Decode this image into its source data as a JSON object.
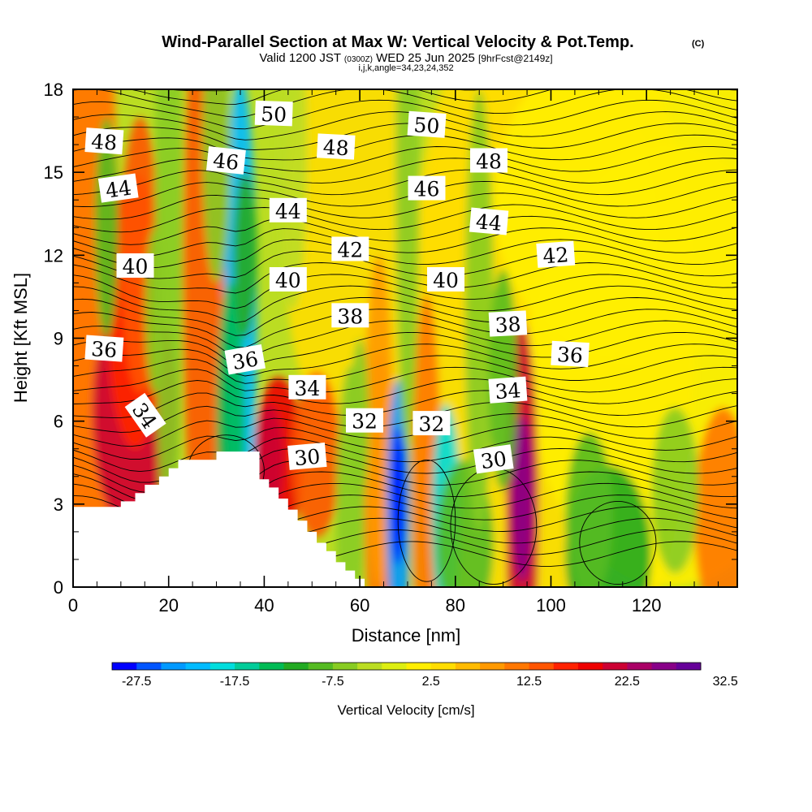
{
  "header": {
    "title": "Wind-Parallel Section at Max W: Vertical Velocity & Pot.Temp.",
    "copyright": "(C)",
    "valid_prefix": "Valid 1200 JST",
    "valid_utc": "(0300Z)",
    "valid_date": "WED 25 Jun 2025",
    "forecast": "[9hrFcst@2149z]",
    "indices": "i,j,k,angle=34,23,24,352"
  },
  "chart_data": {
    "type": "heatmap",
    "xlabel": "Distance [nm]",
    "ylabel": "Height [Kft MSL]",
    "xlim": [
      0,
      139
    ],
    "ylim": [
      0,
      18
    ],
    "x_ticks": [
      0,
      20,
      40,
      60,
      80,
      100,
      120
    ],
    "y_ticks": [
      0,
      3,
      6,
      9,
      12,
      15,
      18
    ],
    "colorbar": {
      "label": "Vertical Velocity [cm/s]",
      "min": -30,
      "step": 2.5,
      "ticks": [
        "-27.5",
        "-17.5",
        "-7.5",
        "2.5",
        "12.5",
        "22.5",
        "32.5"
      ],
      "colors": [
        "#0000ff",
        "#0055ff",
        "#0099ff",
        "#00bbff",
        "#00dddd",
        "#00cc99",
        "#00bb55",
        "#22aa22",
        "#55bb22",
        "#88cc22",
        "#bbdd22",
        "#ddee11",
        "#ffee00",
        "#ffdd00",
        "#ffbb00",
        "#ff9900",
        "#ff7700",
        "#ff5500",
        "#ff2200",
        "#ee0000",
        "#cc0033",
        "#aa0066",
        "#880088",
        "#660099"
      ]
    },
    "terrain": [
      [
        0,
        2.9
      ],
      [
        10,
        2.9
      ],
      [
        10,
        3.1
      ],
      [
        13,
        3.1
      ],
      [
        13,
        3.4
      ],
      [
        15,
        3.4
      ],
      [
        15,
        3.7
      ],
      [
        18,
        3.7
      ],
      [
        18,
        4
      ],
      [
        20,
        4
      ],
      [
        20,
        4.3
      ],
      [
        22,
        4.3
      ],
      [
        22,
        4.6
      ],
      [
        30,
        4.6
      ],
      [
        30,
        4.9
      ],
      [
        39,
        4.9
      ],
      [
        39,
        3.9
      ],
      [
        41,
        3.9
      ],
      [
        41,
        3.6
      ],
      [
        43,
        3.6
      ],
      [
        43,
        3.2
      ],
      [
        45,
        3.2
      ],
      [
        45,
        2.8
      ],
      [
        47,
        2.8
      ],
      [
        47,
        2.4
      ],
      [
        49,
        2.4
      ],
      [
        49,
        2
      ],
      [
        51,
        2
      ],
      [
        51,
        1.6
      ],
      [
        53,
        1.6
      ],
      [
        53,
        1.3
      ],
      [
        55,
        1.3
      ],
      [
        55,
        0.9
      ],
      [
        57,
        0.9
      ],
      [
        57,
        0.6
      ],
      [
        59,
        0.6
      ],
      [
        59,
        0.3
      ],
      [
        61,
        0.3
      ],
      [
        61,
        0
      ]
    ],
    "theta_contour_labels": [
      {
        "text": "48",
        "x": 6.5,
        "y": 16.1,
        "rot": 4
      },
      {
        "text": "50",
        "x": 42,
        "y": 17.1,
        "rot": 2
      },
      {
        "text": "50",
        "x": 74,
        "y": 16.7,
        "rot": 4
      },
      {
        "text": "46",
        "x": 32,
        "y": 15.4,
        "rot": 6
      },
      {
        "text": "48",
        "x": 55,
        "y": 15.9,
        "rot": 3
      },
      {
        "text": "48",
        "x": 87,
        "y": 15.4,
        "rot": 0
      },
      {
        "text": "44",
        "x": 9.5,
        "y": 14.4,
        "rot": -8
      },
      {
        "text": "46",
        "x": 74,
        "y": 14.4,
        "rot": 0
      },
      {
        "text": "44",
        "x": 45,
        "y": 13.6,
        "rot": 0
      },
      {
        "text": "44",
        "x": 87,
        "y": 13.2,
        "rot": 5
      },
      {
        "text": "42",
        "x": 58,
        "y": 12.2,
        "rot": 0
      },
      {
        "text": "42",
        "x": 101,
        "y": 12.0,
        "rot": -4
      },
      {
        "text": "40",
        "x": 13,
        "y": 11.6,
        "rot": 0
      },
      {
        "text": "40",
        "x": 45,
        "y": 11.1,
        "rot": 0
      },
      {
        "text": "40",
        "x": 78,
        "y": 11.1,
        "rot": 0
      },
      {
        "text": "38",
        "x": 58,
        "y": 9.8,
        "rot": 0
      },
      {
        "text": "38",
        "x": 91,
        "y": 9.5,
        "rot": -3
      },
      {
        "text": "36",
        "x": 6.5,
        "y": 8.6,
        "rot": 4
      },
      {
        "text": "36",
        "x": 36,
        "y": 8.2,
        "rot": -10
      },
      {
        "text": "36",
        "x": 104,
        "y": 8.4,
        "rot": 3
      },
      {
        "text": "34",
        "x": 49,
        "y": 7.2,
        "rot": 0
      },
      {
        "text": "34",
        "x": 91,
        "y": 7.1,
        "rot": -4
      },
      {
        "text": "34",
        "x": 15,
        "y": 6.2,
        "rot": 55
      },
      {
        "text": "32",
        "x": 61,
        "y": 6.0,
        "rot": 0
      },
      {
        "text": "32",
        "x": 75,
        "y": 5.9,
        "rot": 0
      },
      {
        "text": "30",
        "x": 49,
        "y": 4.7,
        "rot": -5
      },
      {
        "text": "30",
        "x": 88,
        "y": 4.6,
        "rot": -8
      }
    ]
  }
}
